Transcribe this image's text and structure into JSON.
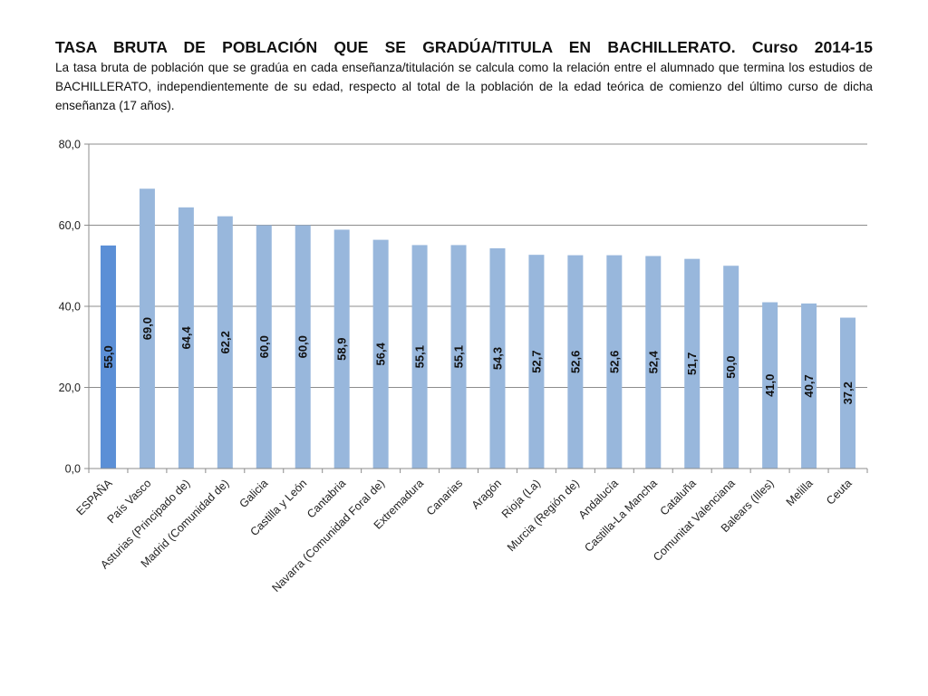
{
  "header": {
    "title": "TASA BRUTA DE POBLACIÓN QUE SE GRADÚA/TITULA EN BACHILLERATO. Curso 2014-15",
    "subtitle": "La tasa bruta de población que se gradúa en cada enseñanza/titulación se calcula como la relación entre el alumnado que termina los estudios de BACHILLERATO, independientemente de su edad, respecto al total de la población de la edad teórica de comienzo del último curso de dicha enseñanza (17 años)."
  },
  "chart_data": {
    "type": "bar",
    "categories": [
      "ESPAÑA",
      "País Vasco",
      "Asturias (Principado de)",
      "Madrid (Comunidad de)",
      "Galicia",
      "Castilla y León",
      "Cantabria",
      "Navarra (Comunidad Foral de)",
      "Extremadura",
      "Canarias",
      "Aragón",
      "Rioja (La)",
      "Murcia (Región de)",
      "Andalucía",
      "Castilla-La Mancha",
      "Cataluña",
      "Comunitat Valenciana",
      "Balears (Illes)",
      "Melilla",
      "Ceuta"
    ],
    "values": [
      55.0,
      69.0,
      64.4,
      62.2,
      60.0,
      60.0,
      58.9,
      56.4,
      55.1,
      55.1,
      54.3,
      52.7,
      52.6,
      52.6,
      52.4,
      51.7,
      50.0,
      41.0,
      40.7,
      37.2
    ],
    "value_labels": [
      "55,0",
      "69,0",
      "64,4",
      "62,2",
      "60,0",
      "60,0",
      "58,9",
      "56,4",
      "55,1",
      "55,1",
      "54,3",
      "52,7",
      "52,6",
      "52,6",
      "52,4",
      "51,7",
      "50,0",
      "41,0",
      "40,7",
      "37,2"
    ],
    "ylim": [
      0,
      80
    ],
    "yticks": [
      0,
      20,
      40,
      60,
      80
    ],
    "ytick_labels": [
      "0,0",
      "20,0",
      "40,0",
      "60,0",
      "80,0"
    ],
    "grid": true,
    "colors": {
      "highlight": "#5b8fd6",
      "default": "#98b7dc",
      "grid": "#8c8c8c",
      "axis": "#8c8c8c"
    },
    "highlight_index": 0
  }
}
